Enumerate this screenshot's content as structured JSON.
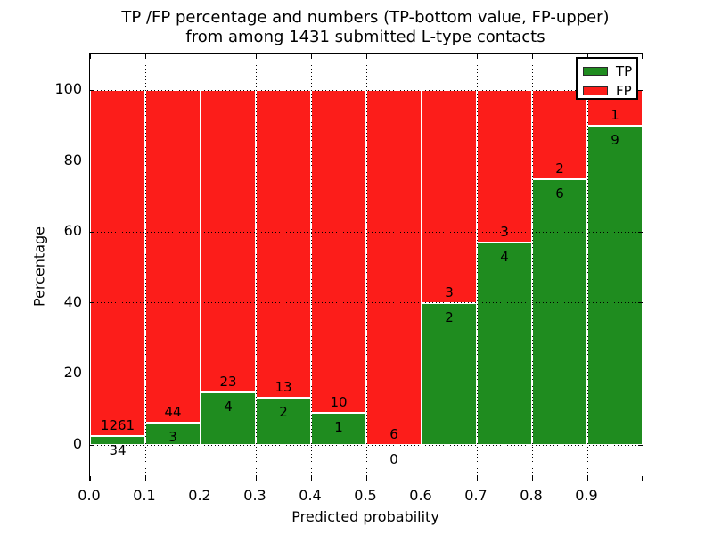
{
  "title_lines": [
    "TP /FP percentage and numbers (TP-bottom value, FP-upper)",
    "from among 1431 submitted L-type contacts"
  ],
  "chart_data": {
    "type": "bar",
    "stacked": true,
    "title": "TP /FP percentage and numbers (TP-bottom value, FP-upper) from among 1431 submitted L-type contacts",
    "xlabel": "Predicted probability",
    "ylabel": "Percentage",
    "xlim": [
      0.0,
      1.0
    ],
    "ylim": [
      -10,
      110
    ],
    "x_tick_labels": [
      "0.0",
      "0.1",
      "0.2",
      "0.3",
      "0.4",
      "0.5",
      "0.6",
      "0.7",
      "0.8",
      "0.9"
    ],
    "y_ticks": [
      0,
      20,
      40,
      60,
      80,
      100
    ],
    "grid": true,
    "total_contacts": 1431,
    "categories": [
      "0.0-0.1",
      "0.1-0.2",
      "0.2-0.3",
      "0.3-0.4",
      "0.4-0.5",
      "0.5-0.6",
      "0.6-0.7",
      "0.7-0.8",
      "0.8-0.9",
      "0.9-1.0"
    ],
    "series": [
      {
        "name": "TP",
        "color": "#1f8c1f",
        "counts": [
          34,
          3,
          4,
          2,
          1,
          0,
          2,
          4,
          6,
          9
        ],
        "pct": [
          2.63,
          6.38,
          14.81,
          13.33,
          9.09,
          0,
          40,
          57.14,
          75,
          90
        ]
      },
      {
        "name": "FP",
        "color": "#fc1d1a",
        "counts": [
          1261,
          44,
          23,
          13,
          10,
          6,
          3,
          3,
          2,
          1
        ],
        "pct": [
          97.37,
          93.62,
          85.19,
          86.67,
          90.91,
          100,
          60,
          42.86,
          25,
          10
        ]
      }
    ],
    "legend": {
      "position": "upper right",
      "entries": [
        {
          "label": "TP",
          "color": "#1f8c1f"
        },
        {
          "label": "FP",
          "color": "#fc1d1a"
        }
      ]
    }
  }
}
